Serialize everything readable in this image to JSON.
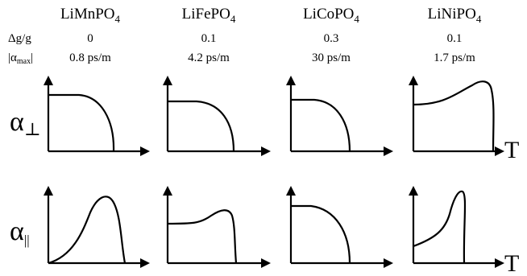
{
  "materials": [
    {
      "name": "LiMnPO",
      "sub": "4",
      "dg": "0",
      "alpha": "0.8 ps/m"
    },
    {
      "name": "LiFePO",
      "sub": "4",
      "dg": "0.1",
      "alpha": "4.2 ps/m"
    },
    {
      "name": "LiCoPO",
      "sub": "4",
      "dg": "0.3",
      "alpha": "30 ps/m"
    },
    {
      "name": "LiNiPO",
      "sub": "4",
      "dg": "0.1",
      "alpha": "1.7 ps/m"
    }
  ],
  "row_labels": {
    "dg": "Δg/g",
    "alpha_bar_open": "|α",
    "alpha_sub": "max",
    "alpha_bar_close": "|"
  },
  "axis_symbols": {
    "alpha": "α",
    "perp_sub": "⊥",
    "par_sub": "||",
    "temperature": "T"
  },
  "colors": {
    "ink": "#000000",
    "background": "#ffffff"
  }
}
